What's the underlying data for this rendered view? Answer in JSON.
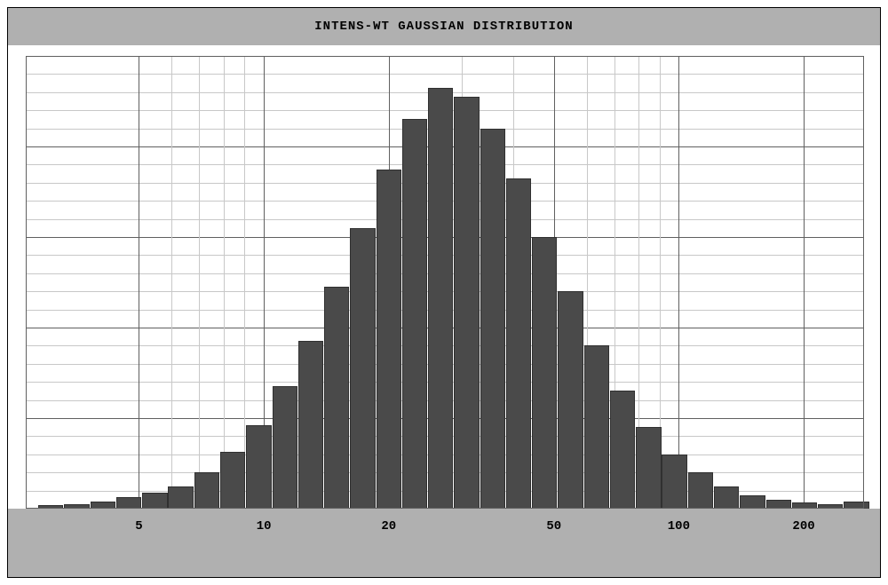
{
  "chart": {
    "type": "histogram",
    "title": "INTENS-WT GAUSSIAN DISTRIBUTION",
    "title_fontsize": 14,
    "title_font": "Courier New",
    "title_color": "#000000",
    "header_background": "#b0b0b0",
    "footer_background": "#b0b0b0",
    "plot_background": "#ffffff",
    "outer_border_color": "#000000",
    "plot_border_color": "#606060",
    "grid": {
      "major_color": "#606060",
      "minor_color": "#c8c8c8",
      "major_width": 1,
      "minor_width": 1,
      "y_major_count": 5,
      "y_minor_per_major": 5,
      "x_log_base": 10
    },
    "x_axis": {
      "scale": "log",
      "ticks": [
        {
          "value": 5,
          "label": "5",
          "pos_pct": 13.5,
          "major": true
        },
        {
          "value": 6,
          "pos_pct": 17.4,
          "major": false
        },
        {
          "value": 7,
          "pos_pct": 20.7,
          "major": false
        },
        {
          "value": 8,
          "pos_pct": 23.6,
          "major": false
        },
        {
          "value": 9,
          "pos_pct": 26.1,
          "major": false
        },
        {
          "value": 10,
          "label": "10",
          "pos_pct": 28.4,
          "major": true
        },
        {
          "value": 20,
          "label": "20",
          "pos_pct": 43.3,
          "major": true
        },
        {
          "value": 30,
          "pos_pct": 52.0,
          "major": false
        },
        {
          "value": 40,
          "pos_pct": 58.2,
          "major": false
        },
        {
          "value": 50,
          "label": "50",
          "pos_pct": 63.0,
          "major": true
        },
        {
          "value": 60,
          "pos_pct": 66.9,
          "major": false
        },
        {
          "value": 70,
          "pos_pct": 70.2,
          "major": false
        },
        {
          "value": 80,
          "pos_pct": 73.1,
          "major": false
        },
        {
          "value": 90,
          "pos_pct": 75.6,
          "major": false
        },
        {
          "value": 100,
          "label": "100",
          "pos_pct": 77.9,
          "major": true
        },
        {
          "value": 200,
          "label": "200",
          "pos_pct": 92.8,
          "major": true
        }
      ],
      "label_fontsize": 14,
      "label_color": "#000000"
    },
    "y_axis": {
      "ylim": [
        0,
        100
      ],
      "major_lines_pct": [
        0,
        20,
        40,
        60,
        80,
        100
      ],
      "minor_lines_pct": [
        4,
        8,
        12,
        16,
        24,
        28,
        32,
        36,
        44,
        48,
        52,
        56,
        64,
        68,
        72,
        76,
        84,
        88,
        92,
        96
      ]
    },
    "bars": {
      "color": "#4a4a4a",
      "border_color": "#303030",
      "width_pct": 3.0,
      "gap_pct": 0.1,
      "values": [
        {
          "x_pct": 1.5,
          "height_pct": 0.8
        },
        {
          "x_pct": 4.6,
          "height_pct": 1.0
        },
        {
          "x_pct": 7.7,
          "height_pct": 1.5
        },
        {
          "x_pct": 10.8,
          "height_pct": 2.5
        },
        {
          "x_pct": 13.9,
          "height_pct": 3.5
        },
        {
          "x_pct": 17.0,
          "height_pct": 5.0
        },
        {
          "x_pct": 20.1,
          "height_pct": 8.0
        },
        {
          "x_pct": 23.2,
          "height_pct": 12.5
        },
        {
          "x_pct": 26.3,
          "height_pct": 18.5
        },
        {
          "x_pct": 29.4,
          "height_pct": 27.0
        },
        {
          "x_pct": 32.5,
          "height_pct": 37.0
        },
        {
          "x_pct": 35.6,
          "height_pct": 49.0
        },
        {
          "x_pct": 38.7,
          "height_pct": 62.0
        },
        {
          "x_pct": 41.8,
          "height_pct": 75.0
        },
        {
          "x_pct": 44.9,
          "height_pct": 86.0
        },
        {
          "x_pct": 48.0,
          "height_pct": 93.0
        },
        {
          "x_pct": 51.1,
          "height_pct": 91.0
        },
        {
          "x_pct": 54.2,
          "height_pct": 84.0
        },
        {
          "x_pct": 57.3,
          "height_pct": 73.0
        },
        {
          "x_pct": 60.4,
          "height_pct": 60.0
        },
        {
          "x_pct": 63.5,
          "height_pct": 48.0
        },
        {
          "x_pct": 66.6,
          "height_pct": 36.0
        },
        {
          "x_pct": 69.7,
          "height_pct": 26.0
        },
        {
          "x_pct": 72.8,
          "height_pct": 18.0
        },
        {
          "x_pct": 75.9,
          "height_pct": 12.0
        },
        {
          "x_pct": 79.0,
          "height_pct": 8.0
        },
        {
          "x_pct": 82.1,
          "height_pct": 5.0
        },
        {
          "x_pct": 85.2,
          "height_pct": 3.0
        },
        {
          "x_pct": 88.3,
          "height_pct": 2.0
        },
        {
          "x_pct": 91.4,
          "height_pct": 1.3
        },
        {
          "x_pct": 94.5,
          "height_pct": 1.0
        },
        {
          "x_pct": 97.6,
          "height_pct": 1.5
        }
      ]
    }
  }
}
